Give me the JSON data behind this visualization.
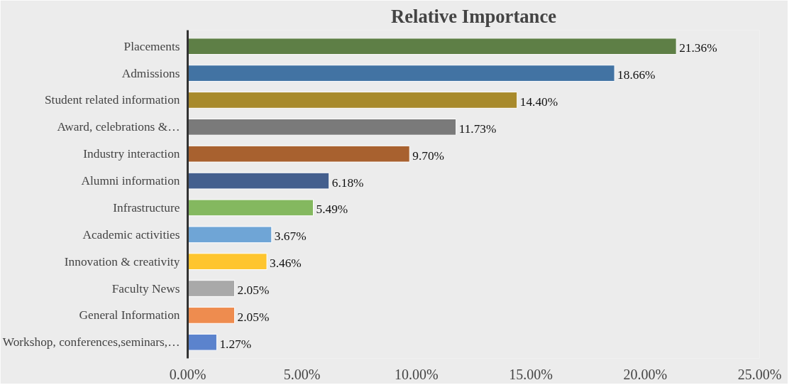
{
  "chart_data": {
    "type": "bar",
    "orientation": "horizontal",
    "title": "Relative Importance",
    "categories": [
      "Placements",
      "Admissions",
      "Student related information",
      "Award, celebrations &…",
      "Industry interaction",
      "Alumni information",
      "Infrastructure",
      "Academic activities",
      "Innovation & creativity",
      "Faculty News",
      "General Information",
      "Workshop, conferences,seminars,…"
    ],
    "values": [
      21.36,
      18.66,
      14.4,
      11.73,
      9.7,
      6.18,
      5.49,
      3.67,
      3.46,
      2.05,
      2.05,
      1.27
    ],
    "colors": [
      "#5e7f46",
      "#4273a3",
      "#a88a2b",
      "#7a7a7a",
      "#a8612f",
      "#445f8e",
      "#84b85f",
      "#6fa5d6",
      "#fec52e",
      "#a9a9a9",
      "#ee8c4f",
      "#5b83cd"
    ],
    "value_labels": [
      "21.36%",
      "18.66%",
      "14.40%",
      "11.73%",
      "9.70%",
      "6.18%",
      "5.49%",
      "3.67%",
      "3.46%",
      "2.05%",
      "2.05%",
      "1.27%"
    ],
    "xlim": [
      0,
      25
    ],
    "xticks": [
      {
        "value": 0,
        "label": "0.00%"
      },
      {
        "value": 5,
        "label": "5.00%"
      },
      {
        "value": 10,
        "label": "10.00%"
      },
      {
        "value": 15,
        "label": "15.00%"
      },
      {
        "value": 20,
        "label": "20.00%"
      },
      {
        "value": 25,
        "label": "25.00%"
      }
    ],
    "grid": false
  }
}
